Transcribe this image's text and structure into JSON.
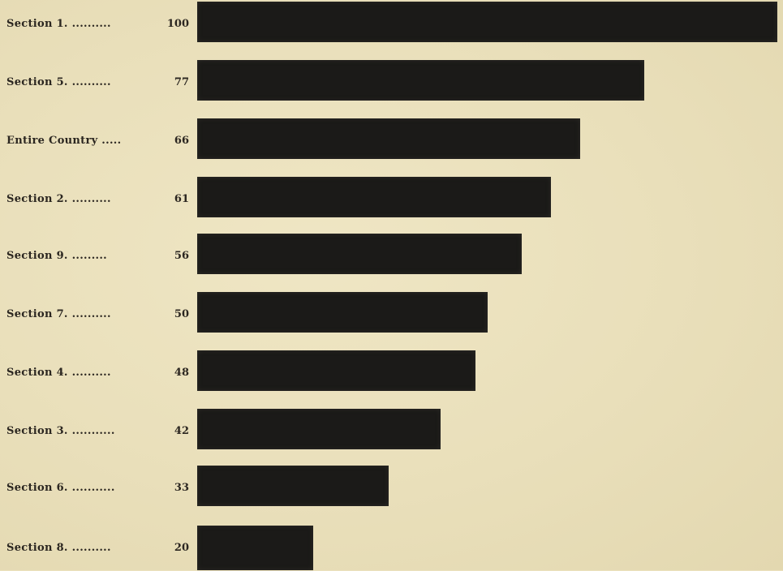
{
  "chart_data": {
    "type": "bar",
    "orientation": "horizontal",
    "categories": [
      "Section 1. ..........",
      "Section 5. ..........",
      "Entire Country .....",
      "Section 2. ..........",
      "Section 9. .........",
      "Section 7. ..........",
      "Section 4. ..........",
      "Section 3. ...........",
      "Section 6. ...........",
      "Section 8. .........."
    ],
    "values": [
      100,
      77,
      66,
      61,
      56,
      50,
      48,
      42,
      33,
      20
    ],
    "value_labels": [
      "100",
      "77",
      "66",
      "61",
      "56",
      "50",
      "48",
      "42",
      "33",
      "20"
    ],
    "xlim": [
      0,
      100
    ],
    "grid": false,
    "legend": "none",
    "bar_color": "#1b1a18",
    "background_color": "#ebe1bd"
  }
}
